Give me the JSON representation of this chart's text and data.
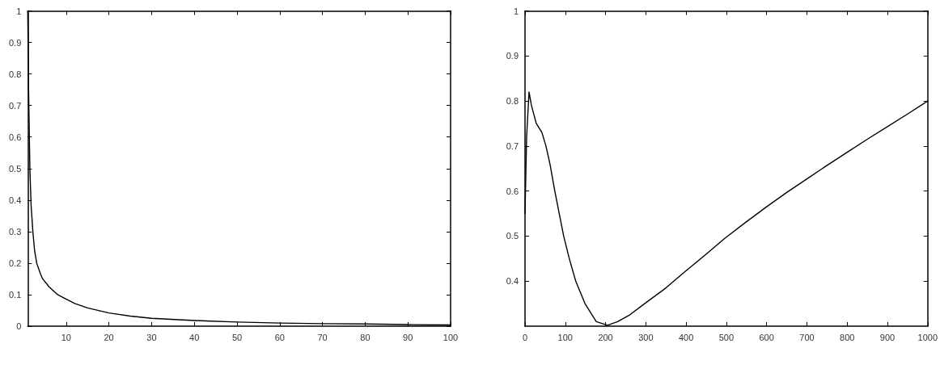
{
  "chart_data": [
    {
      "type": "line",
      "x": [
        1,
        1.2,
        1.5,
        1.8,
        2.2,
        2.6,
        3.1,
        4,
        4.5,
        6,
        8,
        9.4,
        12,
        15,
        20,
        25,
        30,
        40,
        50,
        60,
        70,
        80,
        90,
        100
      ],
      "series": [
        {
          "color": "#000000",
          "values": [
            1,
            0.75,
            0.5,
            0.38,
            0.3,
            0.24,
            0.2,
            0.165,
            0.15,
            0.125,
            0.1,
            0.09,
            0.072,
            0.058,
            0.042,
            0.032,
            0.025,
            0.018,
            0.013,
            0.01,
            0.008,
            0.007,
            0.005,
            0.004
          ]
        }
      ],
      "xlim": [
        1,
        100
      ],
      "xticks": [
        10,
        20,
        30,
        40,
        50,
        60,
        70,
        80,
        90,
        100
      ],
      "ylim": [
        0,
        1
      ],
      "yticks": [
        0,
        0.1,
        0.2,
        0.3,
        0.4,
        0.5,
        0.6,
        0.7,
        0.8,
        0.9,
        1
      ],
      "grid": false,
      "marker": "none",
      "line_style": "solid"
    },
    {
      "type": "line",
      "x": [
        0,
        4,
        10,
        16,
        22,
        28,
        42,
        52,
        62,
        74,
        85,
        96,
        110,
        126,
        149,
        177,
        205,
        230,
        260,
        297,
        350,
        396,
        450,
        496,
        550,
        600,
        650,
        700,
        750,
        800,
        850,
        900,
        950,
        1000
      ],
      "series": [
        {
          "color": "#000000",
          "values": [
            0.55,
            0.72,
            0.82,
            0.79,
            0.77,
            0.75,
            0.73,
            0.7,
            0.66,
            0.6,
            0.55,
            0.5,
            0.45,
            0.4,
            0.35,
            0.31,
            0.302,
            0.31,
            0.325,
            0.35,
            0.385,
            0.42,
            0.46,
            0.495,
            0.532,
            0.565,
            0.597,
            0.627,
            0.657,
            0.686,
            0.715,
            0.743,
            0.771,
            0.8
          ]
        }
      ],
      "xlim": [
        0,
        1000
      ],
      "xticks": [
        0,
        100,
        200,
        300,
        400,
        500,
        600,
        700,
        800,
        900,
        1000
      ],
      "ylim": [
        0.3,
        1
      ],
      "yticks": [
        0.4,
        0.5,
        0.6,
        0.7,
        0.8,
        0.9,
        1
      ],
      "grid": false,
      "marker": "none",
      "line_style": "solid"
    }
  ]
}
